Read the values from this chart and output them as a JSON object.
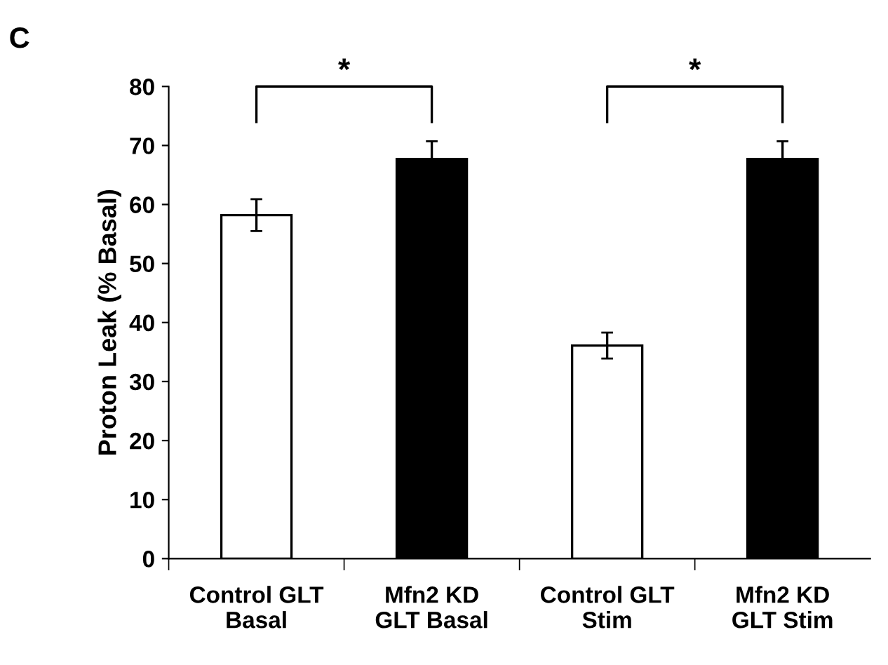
{
  "chart_data": {
    "type": "bar",
    "categories": [
      "Control GLT\nBasal",
      "Mfn2 KD\nGLT Basal",
      "Control GLT\nStim",
      "Mfn2 KD\nGLT Stim"
    ],
    "values": [
      58.2,
      67.7,
      36.1,
      67.7
    ],
    "errors": [
      2.7,
      3,
      2.2,
      3
    ],
    "colors": [
      "#ffffff",
      "#000000",
      "#ffffff",
      "#000000"
    ],
    "ylabel": "Proton Leak (% Basal)",
    "ylim": [
      0,
      80
    ],
    "yticks": [
      0,
      10,
      20,
      30,
      40,
      50,
      60,
      70,
      80
    ],
    "grid": false,
    "legend": false,
    "annotations": [
      "C",
      "*",
      "*"
    ]
  }
}
